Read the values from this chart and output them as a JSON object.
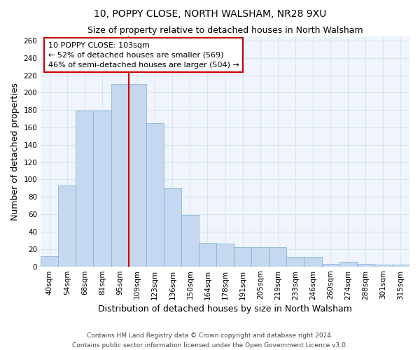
{
  "title": "10, POPPY CLOSE, NORTH WALSHAM, NR28 9XU",
  "subtitle": "Size of property relative to detached houses in North Walsham",
  "xlabel": "Distribution of detached houses by size in North Walsham",
  "ylabel": "Number of detached properties",
  "categories": [
    "40sqm",
    "54sqm",
    "68sqm",
    "81sqm",
    "95sqm",
    "109sqm",
    "123sqm",
    "136sqm",
    "150sqm",
    "164sqm",
    "178sqm",
    "191sqm",
    "205sqm",
    "219sqm",
    "233sqm",
    "246sqm",
    "260sqm",
    "274sqm",
    "288sqm",
    "301sqm",
    "315sqm"
  ],
  "values": [
    12,
    93,
    179,
    179,
    210,
    210,
    165,
    90,
    59,
    27,
    26,
    22,
    22,
    22,
    11,
    11,
    3,
    5,
    3,
    2,
    2
  ],
  "bar_color": "#c5d8f0",
  "bar_edge_color": "#7aafd4",
  "marker_idx": 5,
  "marker_color": "#cc0000",
  "annotation_line1": "10 POPPY CLOSE: 103sqm",
  "annotation_line2": "← 52% of detached houses are smaller (569)",
  "annotation_line3": "46% of semi-detached houses are larger (504) →",
  "annotation_box_color": "#ffffff",
  "annotation_box_edge": "#cc0000",
  "ylim": [
    0,
    265
  ],
  "yticks": [
    0,
    20,
    40,
    60,
    80,
    100,
    120,
    140,
    160,
    180,
    200,
    220,
    240,
    260
  ],
  "bg_color": "#f0f4fc",
  "fig_bg_color": "#ffffff",
  "grid_color": "#d8e4f0",
  "footer_line1": "Contains HM Land Registry data © Crown copyright and database right 2024.",
  "footer_line2": "Contains public sector information licensed under the Open Government Licence v3.0.",
  "title_fontsize": 10,
  "subtitle_fontsize": 9,
  "axis_label_fontsize": 9,
  "tick_fontsize": 7.5,
  "annot_fontsize": 8,
  "footer_fontsize": 6.5
}
